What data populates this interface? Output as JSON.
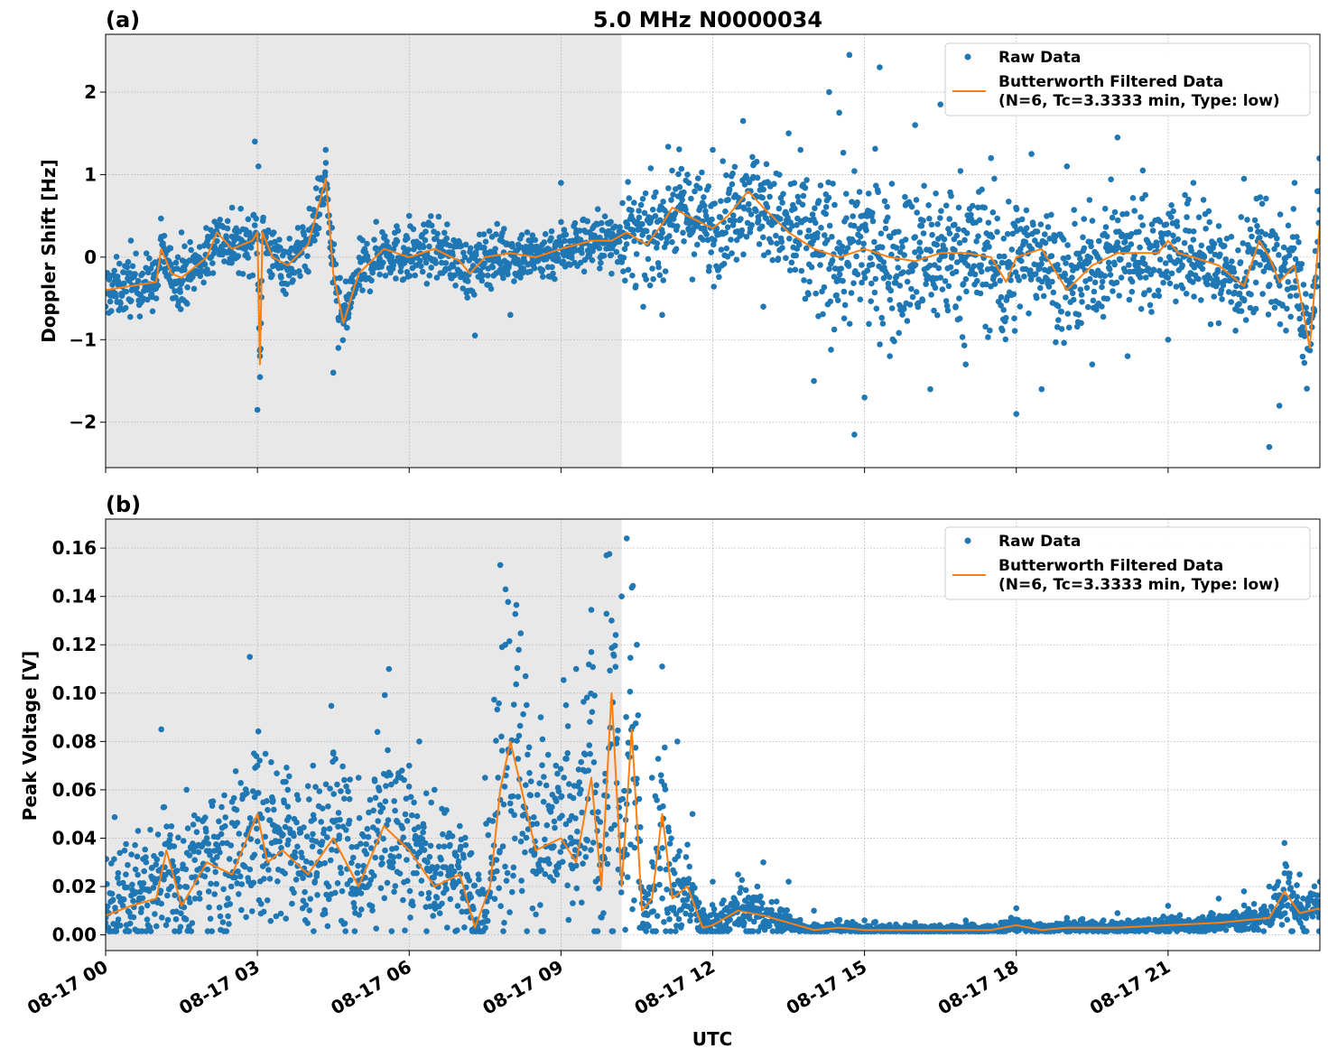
{
  "title": "5.0 MHz N0000034",
  "xlabel": "UTC",
  "x_ticks": [
    "08-17 00",
    "08-17 03",
    "08-17 06",
    "08-17 09",
    "08-17 12",
    "08-17 15",
    "08-17 18",
    "08-17 21"
  ],
  "legend": {
    "raw": "Raw Data",
    "filtered_line1": "Butterworth Filtered Data",
    "filtered_line2": "(N=6, Tc=3.3333 min, Type: low)"
  },
  "colors": {
    "raw": "#1f77b4",
    "filtered": "#ff7f0e",
    "shade": "#e8e8e8",
    "grid": "#b0b0b0"
  },
  "chart_data": [
    {
      "panel": "(a)",
      "type": "scatter",
      "ylabel": "Doppler Shift [Hz]",
      "x_units": "hours UTC (2024-08-17 implied)",
      "xlim": [
        0,
        24
      ],
      "ylim": [
        -2.55,
        2.7
      ],
      "yticks": [
        2,
        1,
        0,
        -1,
        -2
      ],
      "ytick_labels": [
        "2",
        "1",
        "0",
        "−1",
        "−2"
      ],
      "shaded_x": [
        0,
        10.2
      ],
      "grid": true,
      "legend_position": "top-right",
      "series": [
        {
          "name": "Butterworth Filtered Data",
          "kind": "line",
          "x": [
            0,
            0.5,
            1,
            1.1,
            1.3,
            1.5,
            2,
            2.2,
            2.5,
            2.9,
            3.0,
            3.05,
            3.1,
            3.3,
            3.6,
            4,
            4.2,
            4.35,
            4.5,
            4.7,
            5,
            5.5,
            6,
            6.5,
            7,
            7.2,
            7.5,
            8,
            8.5,
            9,
            9.3,
            9.6,
            10,
            10.3,
            10.7,
            11,
            11.2,
            11.5,
            12,
            12.3,
            12.7,
            13,
            13.5,
            14,
            14.5,
            15,
            15.5,
            16,
            16.5,
            17,
            17.5,
            17.8,
            18,
            18.5,
            19,
            19.5,
            20,
            20.5,
            20.8,
            21,
            21.2,
            21.5,
            22,
            22.5,
            22.8,
            23,
            23.2,
            23.5,
            23.8,
            24
          ],
          "y": [
            -0.4,
            -0.35,
            -0.3,
            0.1,
            -0.2,
            -0.25,
            0.0,
            0.3,
            0.1,
            0.2,
            0.3,
            -1.3,
            0.3,
            0.0,
            -0.1,
            0.15,
            0.6,
            0.95,
            -0.2,
            -0.8,
            -0.2,
            0.1,
            0.0,
            0.1,
            -0.05,
            -0.2,
            0.0,
            0.05,
            0.0,
            0.1,
            0.15,
            0.2,
            0.2,
            0.3,
            0.15,
            0.4,
            0.6,
            0.5,
            0.35,
            0.5,
            0.8,
            0.6,
            0.3,
            0.1,
            0.0,
            0.1,
            0.0,
            -0.05,
            0.05,
            0.05,
            0.0,
            -0.3,
            0.0,
            0.1,
            -0.4,
            -0.1,
            0.05,
            0.05,
            0.05,
            0.2,
            0.05,
            0.0,
            -0.1,
            -0.35,
            0.2,
            0.0,
            -0.3,
            -0.1,
            -1.1,
            0.4
          ]
        },
        {
          "name": "Raw Data",
          "kind": "points",
          "x": [
            0,
            0.5,
            1,
            1.5,
            2,
            2.5,
            2.95,
            3.0,
            3.02,
            3.05,
            4.35,
            4.5,
            4.6,
            6,
            7.3,
            8,
            9,
            10,
            10.5,
            11,
            11.5,
            12,
            12.6,
            13,
            13.5,
            14,
            14.3,
            14.5,
            14.7,
            14.8,
            15,
            15.3,
            15.5,
            16,
            16.3,
            16.5,
            17,
            17.5,
            18,
            18.3,
            18.5,
            19,
            19.5,
            20,
            20.2,
            20.5,
            21,
            21.5,
            22,
            22.5,
            23,
            23.2,
            23.5,
            24
          ],
          "y": [
            -0.6,
            0.2,
            -0.5,
            0.3,
            -0.2,
            0.6,
            1.4,
            -1.85,
            1.1,
            -1.2,
            1.3,
            -1.4,
            -1.1,
            0.5,
            -0.95,
            -0.7,
            0.9,
            -0.2,
            0.4,
            -0.7,
            1.0,
            1.3,
            1.65,
            -0.6,
            1.5,
            -1.5,
            2.0,
            1.75,
            2.45,
            -2.15,
            -1.7,
            2.3,
            -1.2,
            1.6,
            -1.6,
            1.85,
            -1.3,
            1.2,
            -1.9,
            1.25,
            -1.6,
            1.1,
            -1.3,
            1.45,
            -1.2,
            1.05,
            -1.0,
            0.9,
            -0.8,
            0.95,
            -2.3,
            -1.8,
            0.9,
            0.8
          ]
        }
      ]
    },
    {
      "panel": "(b)",
      "type": "scatter",
      "ylabel": "Peak Voltage [V]",
      "x_units": "hours UTC (2024-08-17 implied)",
      "xlim": [
        0,
        24
      ],
      "ylim": [
        -0.0065,
        0.172
      ],
      "yticks": [
        0.0,
        0.02,
        0.04,
        0.06,
        0.08,
        0.1,
        0.12,
        0.14,
        0.16
      ],
      "ytick_labels": [
        "0.00",
        "0.02",
        "0.04",
        "0.06",
        "0.08",
        "0.10",
        "0.12",
        "0.14",
        "0.16"
      ],
      "shaded_x": [
        0,
        10.2
      ],
      "grid": true,
      "legend_position": "top-right",
      "series": [
        {
          "name": "Butterworth Filtered Data",
          "kind": "line",
          "x": [
            0,
            0.5,
            1,
            1.2,
            1.5,
            2,
            2.5,
            3,
            3.2,
            3.5,
            4,
            4.5,
            5,
            5.5,
            6,
            6.5,
            7,
            7.3,
            7.6,
            7.8,
            8,
            8.5,
            9,
            9.3,
            9.6,
            9.8,
            10,
            10.2,
            10.4,
            10.6,
            10.8,
            11,
            11.2,
            11.5,
            11.8,
            12,
            12.5,
            13,
            13.5,
            14,
            14.5,
            15,
            16,
            17,
            17.5,
            18,
            18.5,
            19,
            20,
            21,
            22,
            22.5,
            23,
            23.3,
            23.6,
            24
          ],
          "y": [
            0.008,
            0.012,
            0.015,
            0.035,
            0.012,
            0.03,
            0.025,
            0.05,
            0.03,
            0.035,
            0.025,
            0.04,
            0.02,
            0.045,
            0.035,
            0.02,
            0.025,
            0.003,
            0.02,
            0.06,
            0.08,
            0.035,
            0.04,
            0.03,
            0.065,
            0.02,
            0.1,
            0.02,
            0.085,
            0.01,
            0.015,
            0.05,
            0.015,
            0.02,
            0.003,
            0.004,
            0.01,
            0.008,
            0.005,
            0.002,
            0.003,
            0.002,
            0.002,
            0.002,
            0.002,
            0.004,
            0.002,
            0.003,
            0.003,
            0.004,
            0.005,
            0.006,
            0.007,
            0.018,
            0.009,
            0.011
          ]
        },
        {
          "name": "Raw Data",
          "kind": "points",
          "x": [
            0,
            0.4,
            0.8,
            1.1,
            1.3,
            1.6,
            2,
            2.5,
            2.85,
            3.0,
            3.3,
            3.6,
            4.1,
            4.5,
            5,
            5.6,
            6,
            6.2,
            6.5,
            7,
            7.3,
            7.5,
            7.8,
            7.9,
            8.3,
            8.6,
            8.9,
            9.1,
            9.3,
            9.6,
            9.9,
            10.0,
            10.2,
            10.3,
            10.5,
            10.8,
            11.0,
            11.3,
            11.6,
            12,
            12.5,
            13,
            13.5,
            14,
            15,
            16,
            17,
            18,
            19,
            20,
            21,
            22,
            22.5,
            23,
            23.3,
            23.6,
            24
          ],
          "y": [
            0.005,
            0.025,
            0.03,
            0.085,
            0.02,
            0.06,
            0.04,
            0.055,
            0.115,
            0.07,
            0.055,
            0.06,
            0.07,
            0.075,
            0.065,
            0.11,
            0.07,
            0.08,
            0.06,
            0.045,
            0.003,
            0.065,
            0.153,
            0.12,
            0.107,
            0.09,
            0.07,
            0.095,
            0.11,
            0.117,
            0.157,
            0.13,
            0.14,
            0.164,
            0.12,
            0.065,
            0.111,
            0.08,
            0.05,
            0.022,
            0.025,
            0.03,
            0.022,
            0.01,
            0.006,
            0.005,
            0.006,
            0.011,
            0.007,
            0.009,
            0.012,
            0.015,
            0.018,
            0.02,
            0.038,
            0.025,
            0.022
          ]
        }
      ]
    }
  ]
}
